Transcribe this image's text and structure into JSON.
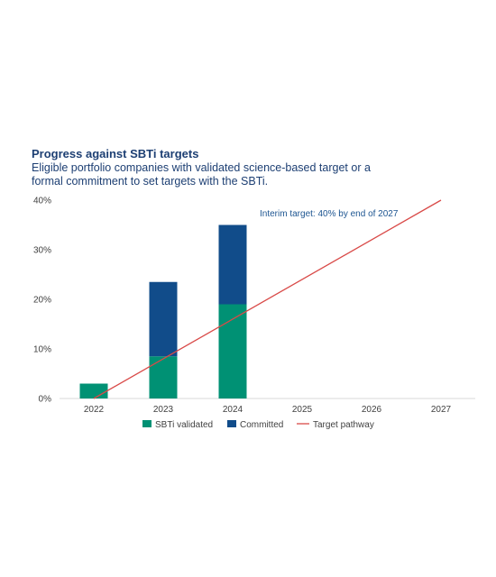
{
  "chart_data": {
    "type": "bar",
    "title": "Progress against SBTi targets",
    "subtitle": "Eligible portfolio companies with validated science-based target or a formal commitment to set targets with the SBTi.",
    "categories": [
      "2022",
      "2023",
      "2024",
      "2025",
      "2026",
      "2027"
    ],
    "series": [
      {
        "name": "SBTi validated",
        "values": [
          3,
          8.5,
          19,
          null,
          null,
          null
        ],
        "color": "#009174"
      },
      {
        "name": "Committed",
        "values": [
          0,
          15,
          16,
          null,
          null,
          null
        ],
        "color": "#114c8a"
      }
    ],
    "line": {
      "name": "Target pathway",
      "points": [
        [
          "2022",
          0
        ],
        [
          "2027",
          40
        ]
      ],
      "color": "#d94a48"
    },
    "stacked": true,
    "yticks": [
      "0%",
      "10%",
      "20%",
      "30%",
      "40%"
    ],
    "ylim": [
      0,
      40
    ],
    "annotation": "Interim target: 40% by end of 2027",
    "legend_position": "bottom"
  }
}
